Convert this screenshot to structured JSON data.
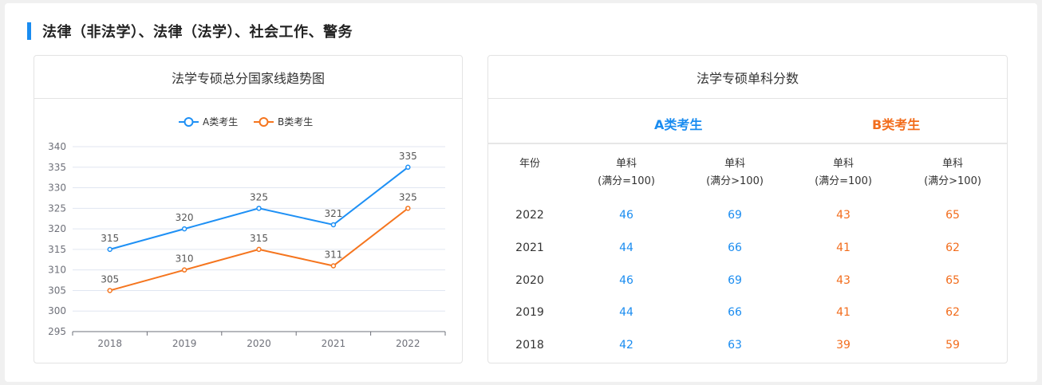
{
  "section_title": "法律（非法学）、法律（法学）、社会工作、警务",
  "left_card": {
    "title": "法学专硕总分国家线趋势图"
  },
  "right_card": {
    "title": "法学专硕单科分数",
    "group_a": "A类考生",
    "group_b": "B类考生",
    "headers": [
      {
        "line1": "年份",
        "line2": ""
      },
      {
        "line1": "单科",
        "line2": "(满分=100)"
      },
      {
        "line1": "单科",
        "line2": "(满分>100)"
      },
      {
        "line1": "单科",
        "line2": "(满分=100)"
      },
      {
        "line1": "单科",
        "line2": "(满分>100)"
      }
    ],
    "rows": [
      {
        "year": "2022",
        "a1": "46",
        "a2": "69",
        "b1": "43",
        "b2": "65"
      },
      {
        "year": "2021",
        "a1": "44",
        "a2": "66",
        "b1": "41",
        "b2": "62"
      },
      {
        "year": "2020",
        "a1": "46",
        "a2": "69",
        "b1": "43",
        "b2": "65"
      },
      {
        "year": "2019",
        "a1": "44",
        "a2": "66",
        "b1": "41",
        "b2": "62"
      },
      {
        "year": "2018",
        "a1": "42",
        "a2": "63",
        "b1": "39",
        "b2": "59"
      }
    ]
  },
  "colors": {
    "accent": "#1a8cf0",
    "series_a": "#1e90f5",
    "series_b": "#f5751e"
  },
  "chart_data": {
    "type": "line",
    "title": "法学专硕总分国家线趋势图",
    "categories": [
      "2018",
      "2019",
      "2020",
      "2021",
      "2022"
    ],
    "series": [
      {
        "name": "A类考生",
        "values": [
          315,
          320,
          325,
          321,
          335
        ]
      },
      {
        "name": "B类考生",
        "values": [
          305,
          310,
          315,
          311,
          325
        ]
      }
    ],
    "ylim": [
      295,
      340
    ],
    "yticks": [
      295,
      300,
      305,
      310,
      315,
      320,
      325,
      330,
      335,
      340
    ],
    "grid": true,
    "legend": "top-center",
    "data_labels": true
  }
}
